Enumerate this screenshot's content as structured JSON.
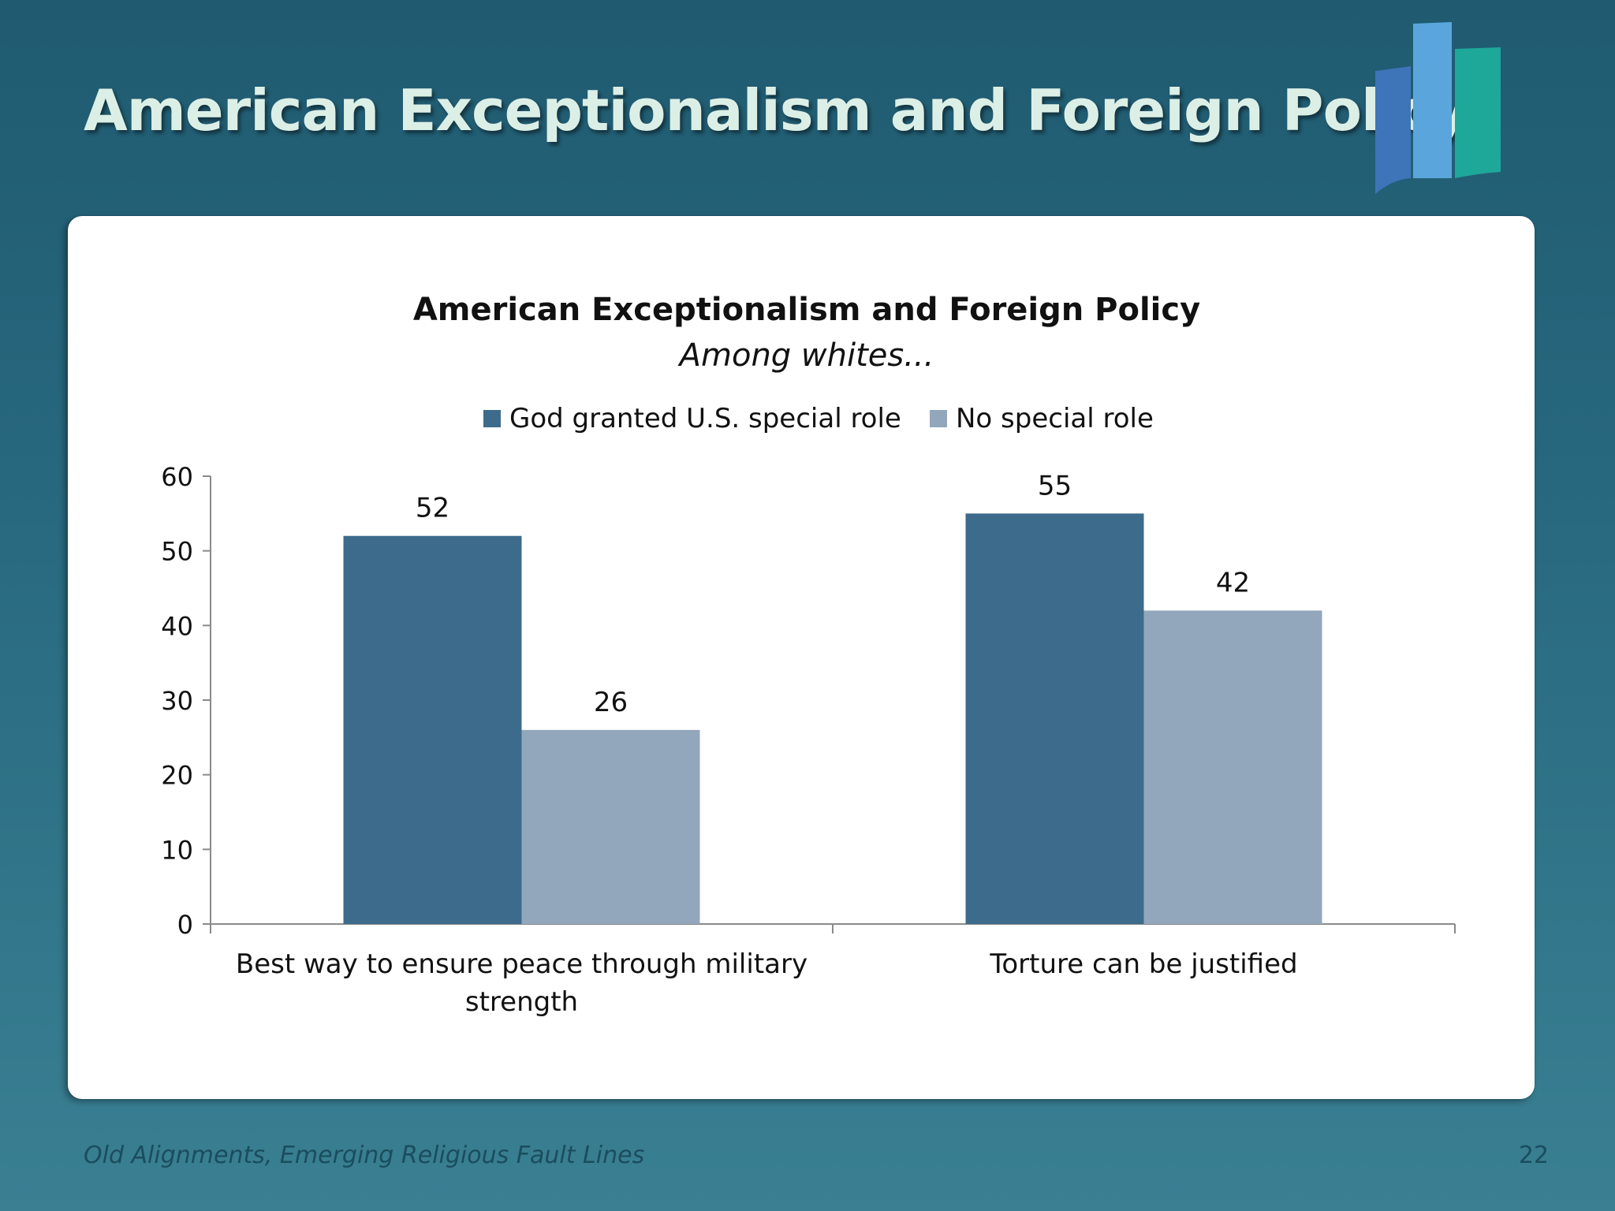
{
  "slide": {
    "title": "American Exceptionalism and Foreign Policy",
    "footer_text": "Old Alignments, Emerging Religious Fault Lines",
    "page_number": "22"
  },
  "logo": {
    "icon": "bar-chart-logo-icon",
    "colors": [
      "#3e74b8",
      "#5aa6dc",
      "#1ea89a"
    ]
  },
  "chart_data": {
    "type": "bar",
    "title": "American Exceptionalism and Foreign Policy",
    "subtitle": "Among whites...",
    "categories": [
      [
        "Best way to ensure peace through military",
        "strength"
      ],
      [
        "Torture can be justified"
      ]
    ],
    "series": [
      {
        "name": "God granted U.S. special role",
        "color": "#3d6b8b",
        "values": [
          52,
          55
        ]
      },
      {
        "name": "No special role",
        "color": "#93a7bc",
        "values": [
          26,
          42
        ]
      }
    ],
    "ylim": [
      0,
      60
    ],
    "yticks": [
      0,
      10,
      20,
      30,
      40,
      50,
      60
    ],
    "legend_position": "top",
    "grid": false
  }
}
